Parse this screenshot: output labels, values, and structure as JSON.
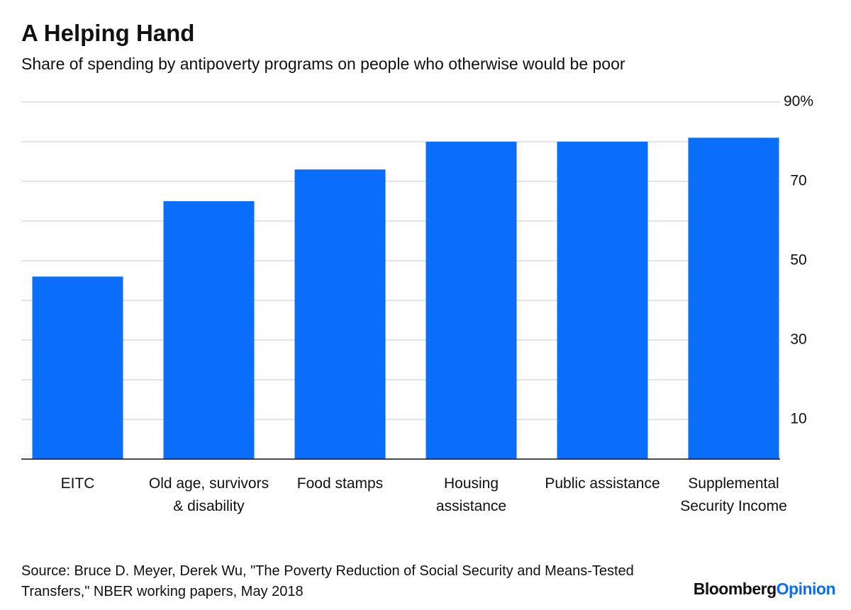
{
  "chart_data": {
    "type": "bar",
    "title": "A Helping Hand",
    "subtitle": "Share of spending by antipoverty programs on people who otherwise would be poor",
    "categories": [
      "EITC",
      "Old age, survivors & disability",
      "Food stamps",
      "Housing assistance",
      "Public assistance",
      "Supplemental Security Income"
    ],
    "values": [
      46,
      65,
      73,
      80,
      80,
      81
    ],
    "color": "#0a6efa",
    "ylim": [
      0,
      90
    ],
    "yticks": [
      10,
      30,
      50,
      70,
      {
        "value": 90,
        "label": "90%"
      }
    ],
    "minor_yticks": [
      20,
      40,
      60,
      80
    ],
    "grid": true,
    "source": "Source: Bruce D. Meyer, Derek Wu, \"The Poverty Reduction of Social Security and Means-Tested Transfers,\" NBER working papers, May 2018",
    "logo": {
      "name": "Bloomberg",
      "suffix": "Opinion"
    }
  }
}
